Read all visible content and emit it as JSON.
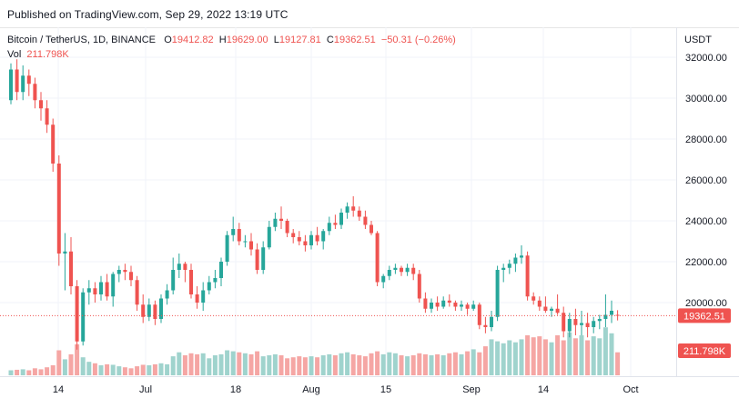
{
  "header": {
    "published": "Published on TradingView.com, Sep 29, 2022 13:19 UTC"
  },
  "legend": {
    "symbol": "Bitcoin / TetherUS, 1D, BINANCE",
    "open_label": "O",
    "open": "19412.82",
    "high_label": "H",
    "high": "19629.00",
    "low_label": "L",
    "low": "19127.81",
    "close_label": "C",
    "close": "19362.51",
    "change": "−50.31 (−0.26%)",
    "vol_label": "Vol",
    "vol_value": "211.798K"
  },
  "price_axis": {
    "unit": "USDT",
    "ticks": [
      "32000.00",
      "30000.00",
      "28000.00",
      "26000.00",
      "24000.00",
      "22000.00",
      "20000.00"
    ],
    "last_price_label": "19362.51",
    "last_volume_label": "211.798K"
  },
  "time_axis": {
    "labels": [
      "14",
      "Jul",
      "18",
      "Aug",
      "15",
      "Sep",
      "14",
      "Oct"
    ]
  },
  "colors": {
    "up": "#26a69a",
    "down": "#ef5350",
    "up_volume": "#9fd3cd",
    "down_volume": "#f5a6a4"
  },
  "chart_data": {
    "type": "candlestick",
    "symbol": "Bitcoin / TetherUS",
    "interval": "1D",
    "exchange": "BINANCE",
    "y_unit": "USDT",
    "ylim": [
      17000,
      33000
    ],
    "last_price": 19362.51,
    "last_volume": "211.798K",
    "ohlc": [
      [
        29900,
        31700,
        29700,
        31400
      ],
      [
        31400,
        31900,
        29900,
        30300
      ],
      [
        30300,
        31600,
        29900,
        31100
      ],
      [
        31100,
        31400,
        30100,
        30700
      ],
      [
        30700,
        31000,
        29500,
        29900
      ],
      [
        29900,
        30300,
        28900,
        29500
      ],
      [
        29500,
        29900,
        28300,
        28700
      ],
      [
        28700,
        29000,
        26400,
        26800
      ],
      [
        26800,
        27200,
        21800,
        22400
      ],
      [
        22400,
        23400,
        20600,
        22500
      ],
      [
        22500,
        23200,
        20400,
        20800
      ],
      [
        20800,
        21100,
        17700,
        18100
      ],
      [
        18100,
        20700,
        17900,
        20500
      ],
      [
        20500,
        21100,
        19900,
        20700
      ],
      [
        20700,
        21000,
        20000,
        20400
      ],
      [
        20400,
        21300,
        20100,
        21000
      ],
      [
        21000,
        21400,
        20100,
        20300
      ],
      [
        20300,
        21500,
        19800,
        21400
      ],
      [
        21400,
        21800,
        21000,
        21600
      ],
      [
        21600,
        21900,
        21100,
        21500
      ],
      [
        21500,
        21800,
        20800,
        21100
      ],
      [
        21100,
        21300,
        19600,
        19900
      ],
      [
        19900,
        20400,
        19000,
        19300
      ],
      [
        19300,
        20200,
        19100,
        19900
      ],
      [
        19900,
        20100,
        18900,
        19200
      ],
      [
        19200,
        20400,
        19000,
        20200
      ],
      [
        20200,
        20900,
        19900,
        20600
      ],
      [
        20600,
        22200,
        20400,
        21600
      ],
      [
        21600,
        22400,
        21200,
        21900
      ],
      [
        21900,
        22000,
        21000,
        21600
      ],
      [
        21600,
        21900,
        20200,
        20400
      ],
      [
        20400,
        20800,
        19700,
        20000
      ],
      [
        20000,
        21000,
        19600,
        20600
      ],
      [
        20600,
        21300,
        20400,
        21000
      ],
      [
        21000,
        21600,
        20700,
        21200
      ],
      [
        21200,
        22200,
        20800,
        22000
      ],
      [
        22000,
        23500,
        21800,
        23300
      ],
      [
        23300,
        24200,
        23000,
        23600
      ],
      [
        23600,
        23900,
        22800,
        23000
      ],
      [
        23000,
        23300,
        22700,
        23000
      ],
      [
        23000,
        23400,
        22300,
        22600
      ],
      [
        22600,
        22900,
        21400,
        21600
      ],
      [
        21600,
        23000,
        21400,
        22700
      ],
      [
        22700,
        24000,
        22600,
        23700
      ],
      [
        23700,
        24400,
        23500,
        24100
      ],
      [
        24100,
        24700,
        23600,
        24000
      ],
      [
        24000,
        24100,
        23200,
        23400
      ],
      [
        23400,
        23600,
        22900,
        23200
      ],
      [
        23200,
        23500,
        22800,
        23000
      ],
      [
        23000,
        23300,
        22500,
        22800
      ],
      [
        22800,
        23500,
        22600,
        23300
      ],
      [
        23300,
        23700,
        22800,
        23000
      ],
      [
        23000,
        23600,
        22600,
        23500
      ],
      [
        23500,
        24200,
        23300,
        23900
      ],
      [
        23900,
        24300,
        23600,
        23800
      ],
      [
        23800,
        24600,
        23600,
        24400
      ],
      [
        24400,
        24900,
        24100,
        24700
      ],
      [
        24700,
        25200,
        24200,
        24500
      ],
      [
        24500,
        24700,
        24000,
        24200
      ],
      [
        24200,
        24500,
        23600,
        23800
      ],
      [
        23800,
        24000,
        23300,
        23400
      ],
      [
        23400,
        23500,
        20800,
        21000
      ],
      [
        21000,
        21400,
        20700,
        21300
      ],
      [
        21300,
        21800,
        21100,
        21600
      ],
      [
        21600,
        21900,
        21400,
        21700
      ],
      [
        21700,
        21800,
        21300,
        21500
      ],
      [
        21500,
        21900,
        21300,
        21700
      ],
      [
        21700,
        21900,
        21100,
        21400
      ],
      [
        21400,
        21600,
        20000,
        20200
      ],
      [
        20200,
        20500,
        19500,
        19700
      ],
      [
        19700,
        20200,
        19500,
        20000
      ],
      [
        20000,
        20300,
        19600,
        19800
      ],
      [
        19800,
        20300,
        19700,
        20100
      ],
      [
        20100,
        20400,
        19800,
        20000
      ],
      [
        20000,
        20100,
        19600,
        19800
      ],
      [
        19800,
        20100,
        19600,
        19900
      ],
      [
        19900,
        20000,
        19400,
        19700
      ],
      [
        19700,
        20100,
        19600,
        19900
      ],
      [
        19900,
        20000,
        18700,
        18900
      ],
      [
        18900,
        19300,
        18500,
        18800
      ],
      [
        18800,
        19600,
        18600,
        19300
      ],
      [
        19300,
        21800,
        19100,
        21600
      ],
      [
        21600,
        21900,
        21000,
        21700
      ],
      [
        21700,
        22100,
        21400,
        21900
      ],
      [
        21900,
        22400,
        21500,
        22200
      ],
      [
        22200,
        22800,
        21900,
        22300
      ],
      [
        22300,
        22500,
        20100,
        20300
      ],
      [
        20300,
        20500,
        19900,
        20100
      ],
      [
        20100,
        20300,
        19600,
        19800
      ],
      [
        19800,
        20300,
        19500,
        19600
      ],
      [
        19600,
        19800,
        19300,
        19700
      ],
      [
        19700,
        20400,
        19400,
        19500
      ],
      [
        19500,
        19800,
        18300,
        18600
      ],
      [
        18600,
        19500,
        18300,
        19200
      ],
      [
        19200,
        19700,
        18400,
        18900
      ],
      [
        18900,
        19600,
        18400,
        19000
      ],
      [
        19000,
        19500,
        18300,
        18800
      ],
      [
        18800,
        19300,
        18500,
        19100
      ],
      [
        19100,
        19400,
        18700,
        19200
      ],
      [
        19200,
        20400,
        18800,
        19400
      ],
      [
        19400,
        20100,
        19000,
        19600
      ],
      [
        19400,
        19629,
        19127,
        19362
      ]
    ],
    "volume_relative": [
      0.1,
      0.11,
      0.12,
      0.1,
      0.14,
      0.12,
      0.16,
      0.2,
      0.5,
      0.32,
      0.42,
      0.62,
      0.36,
      0.27,
      0.24,
      0.2,
      0.22,
      0.21,
      0.18,
      0.16,
      0.14,
      0.18,
      0.21,
      0.2,
      0.22,
      0.24,
      0.22,
      0.38,
      0.46,
      0.4,
      0.44,
      0.42,
      0.44,
      0.34,
      0.4,
      0.42,
      0.5,
      0.48,
      0.46,
      0.44,
      0.42,
      0.48,
      0.38,
      0.4,
      0.42,
      0.4,
      0.34,
      0.36,
      0.38,
      0.36,
      0.38,
      0.36,
      0.4,
      0.42,
      0.4,
      0.44,
      0.46,
      0.42,
      0.4,
      0.38,
      0.44,
      0.48,
      0.42,
      0.46,
      0.44,
      0.4,
      0.38,
      0.4,
      0.44,
      0.42,
      0.4,
      0.42,
      0.4,
      0.44,
      0.46,
      0.42,
      0.48,
      0.52,
      0.46,
      0.58,
      0.72,
      0.68,
      0.64,
      0.7,
      0.66,
      0.72,
      0.8,
      0.76,
      0.78,
      0.72,
      0.66,
      0.8,
      0.7,
      0.86,
      0.74,
      0.8,
      0.7,
      0.78,
      0.74,
      0.96,
      0.84,
      0.46
    ]
  }
}
